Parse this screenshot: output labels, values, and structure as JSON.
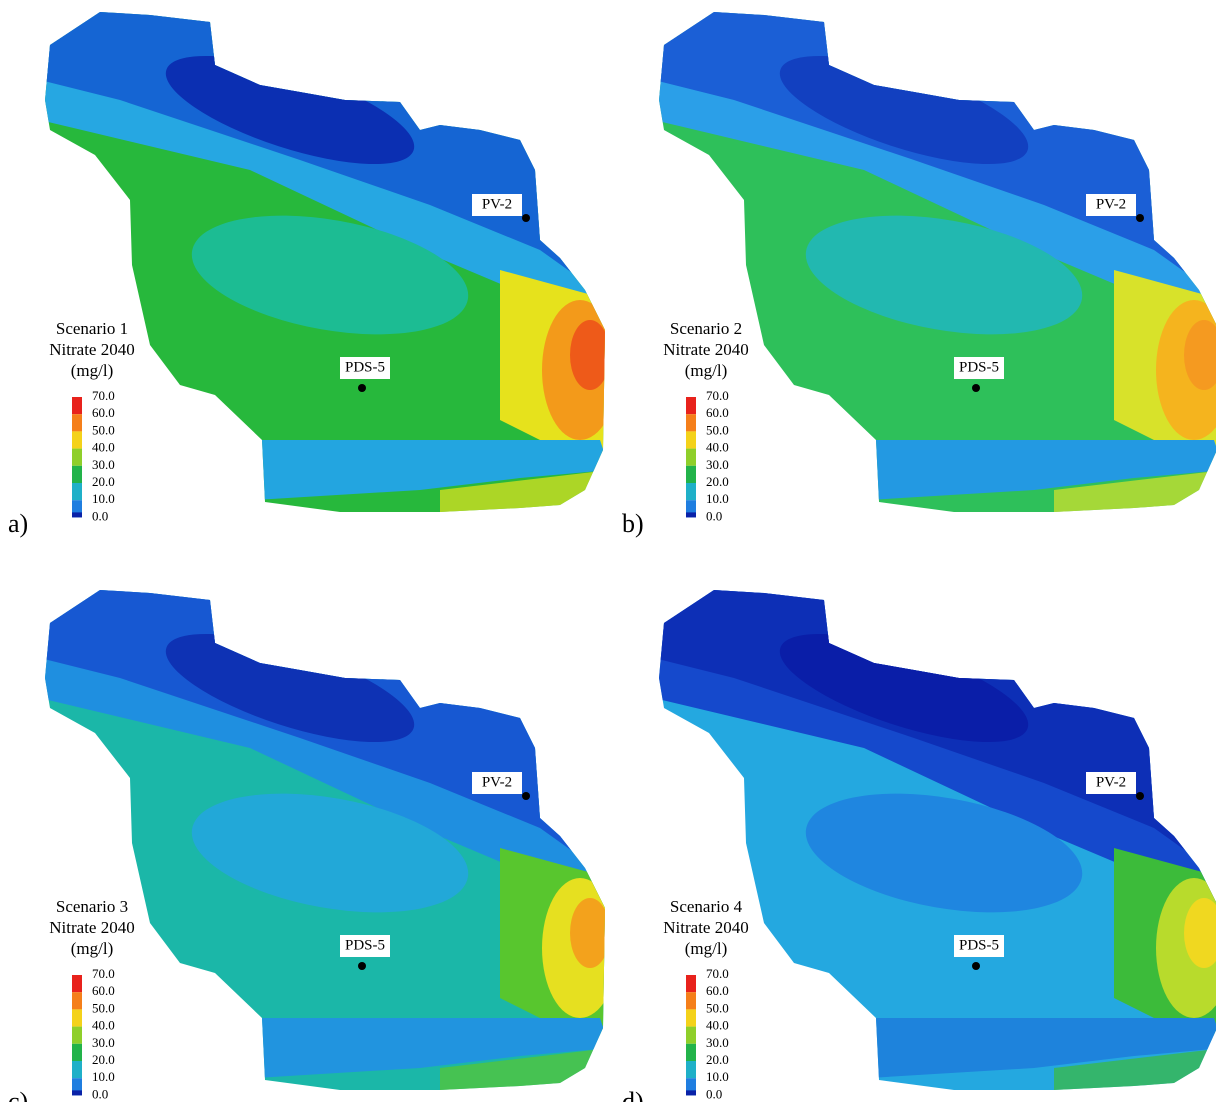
{
  "panels": [
    {
      "label": "a)",
      "title": [
        "Scenario 1",
        "Nitrate 2040",
        "(mg/l)"
      ],
      "legend": [
        "70.0",
        "60.0",
        "50.0",
        "40.0",
        "30.0",
        "20.0",
        "10.0",
        "0.0"
      ],
      "wells": [
        "PV-2",
        "PDS-5"
      ]
    },
    {
      "label": "b)",
      "title": [
        "Scenario 2",
        "Nitrate 2040",
        "(mg/l)"
      ],
      "legend": [
        "70.0",
        "60.0",
        "50.0",
        "40.0",
        "30.0",
        "20.0",
        "10.0",
        "0.0"
      ],
      "wells": [
        "PV-2",
        "PDS-5"
      ]
    },
    {
      "label": "c)",
      "title": [
        "Scenario 3",
        "Nitrate 2040",
        "(mg/l)"
      ],
      "legend": [
        "70.0",
        "60.0",
        "50.0",
        "40.0",
        "30.0",
        "20.0",
        "10.0",
        "0.0"
      ],
      "wells": [
        "PV-2",
        "PDS-5"
      ]
    },
    {
      "label": "d)",
      "title": [
        "Scenario 4",
        "Nitrate 2040",
        "(mg/l)"
      ],
      "legend": [
        "70.0",
        "60.0",
        "50.0",
        "40.0",
        "30.0",
        "20.0",
        "10.0",
        "0.0"
      ],
      "wells": [
        "PV-2",
        "PDS-5"
      ]
    }
  ]
}
